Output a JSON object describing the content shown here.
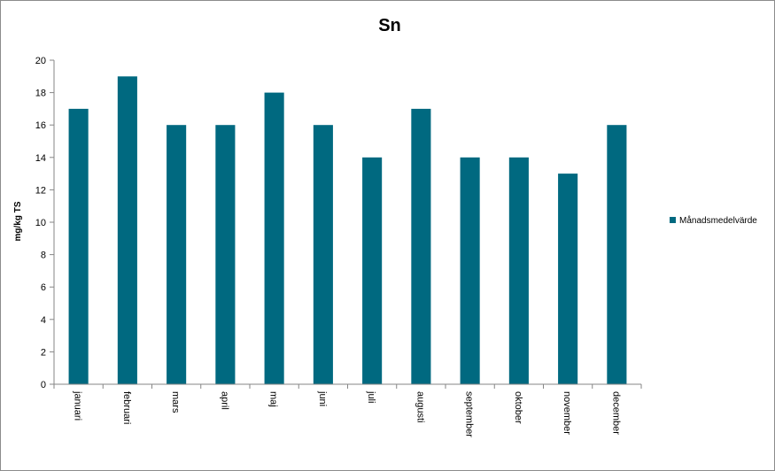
{
  "chart_data": {
    "type": "bar",
    "title": "Sn",
    "xlabel": "",
    "ylabel": "mg/kg TS",
    "ylim": [
      0,
      20
    ],
    "yticks": [
      0,
      2,
      4,
      6,
      8,
      10,
      12,
      14,
      16,
      18,
      20
    ],
    "categories": [
      "januari",
      "februari",
      "mars",
      "april",
      "maj",
      "juni",
      "juli",
      "augusti",
      "september",
      "oktober",
      "november",
      "december"
    ],
    "series": [
      {
        "name": "Månadsmedelvärde",
        "values": [
          17,
          19,
          16,
          16,
          18,
          16,
          14,
          17,
          14,
          14,
          13,
          16
        ]
      }
    ],
    "grid": false,
    "legend_position": "right",
    "colors": {
      "bar": "#006980",
      "axis": "#868686"
    }
  }
}
